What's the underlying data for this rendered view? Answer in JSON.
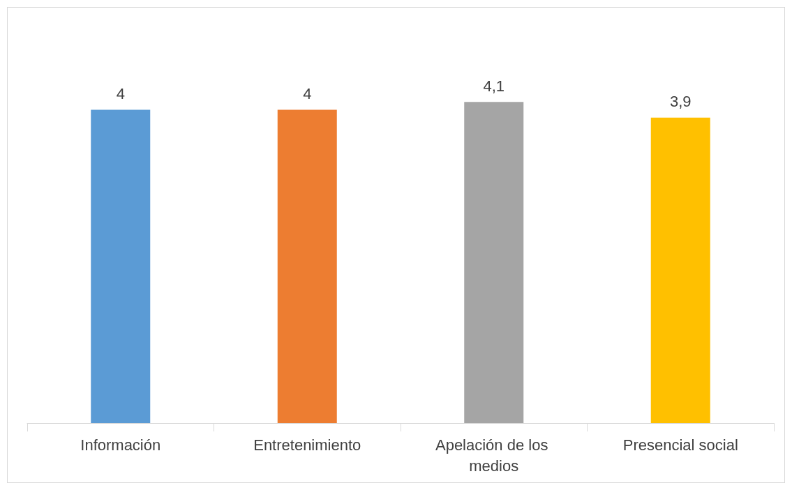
{
  "chart_data": {
    "type": "bar",
    "categories": [
      "Información",
      "Entretenimiento",
      "Apelación de los medios",
      "Presencial social"
    ],
    "values": [
      4,
      4,
      4.1,
      3.9
    ],
    "colors": [
      "#5b9bd5",
      "#ed7d31",
      "#a5a5a5",
      "#ffc000"
    ],
    "value_labels": [
      "4",
      "4",
      "4,1",
      "3,9"
    ]
  }
}
